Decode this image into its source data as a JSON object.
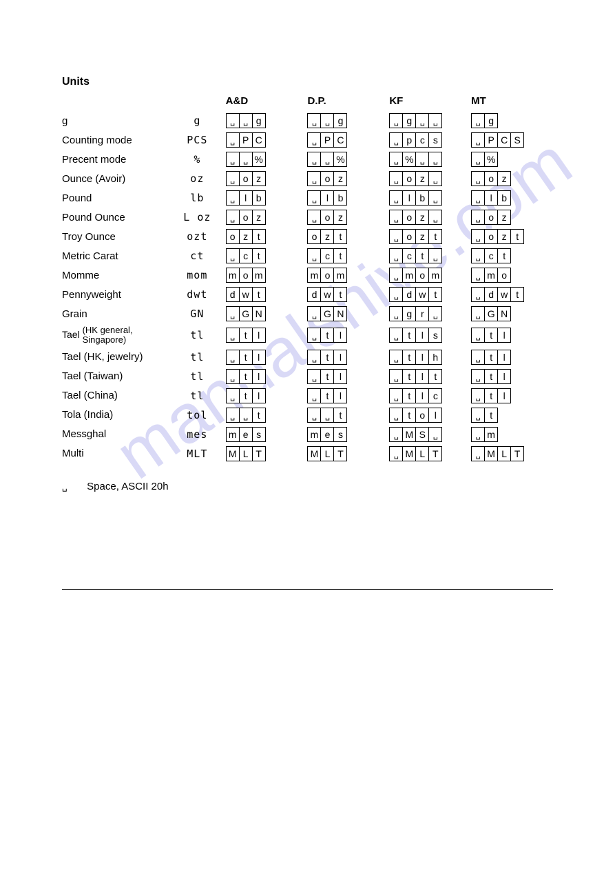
{
  "page_title": "Units",
  "watermark_text": "manualshive.com",
  "footnote_symbol": "␣",
  "footnote_text": "Space,  ASCII  20h",
  "space_char": "␣",
  "columns": [
    "A&D",
    "D.P.",
    "KF",
    "MT"
  ],
  "rows": [
    {
      "label": "g",
      "symbol": "g",
      "ad": [
        "␣",
        "␣",
        "g"
      ],
      "dp": [
        "␣",
        "␣",
        "g"
      ],
      "kf": [
        "␣",
        "g",
        "␣",
        "␣"
      ],
      "mt": [
        "␣",
        "g"
      ]
    },
    {
      "label": "Counting mode",
      "symbol": "PCS",
      "ad": [
        "␣",
        "P",
        "C"
      ],
      "dp": [
        "␣",
        "P",
        "C"
      ],
      "kf": [
        "␣",
        "p",
        "c",
        "s"
      ],
      "mt": [
        "␣",
        "P",
        "C",
        "S"
      ]
    },
    {
      "label": "Precent mode",
      "symbol": "%",
      "ad": [
        "␣",
        "␣",
        "%"
      ],
      "dp": [
        "␣",
        "␣",
        "%"
      ],
      "kf": [
        "␣",
        "%",
        "␣",
        "␣"
      ],
      "mt": [
        "␣",
        "%"
      ]
    },
    {
      "label": "Ounce (Avoir)",
      "symbol": "oz",
      "ad": [
        "␣",
        "o",
        "z"
      ],
      "dp": [
        "␣",
        "o",
        "z"
      ],
      "kf": [
        "␣",
        "o",
        "z",
        "␣"
      ],
      "mt": [
        "␣",
        "o",
        "z"
      ]
    },
    {
      "label": "Pound",
      "symbol": "lb",
      "ad": [
        "␣",
        "l",
        "b"
      ],
      "dp": [
        "␣",
        "l",
        "b"
      ],
      "kf": [
        "␣",
        "l",
        "b",
        "␣"
      ],
      "mt": [
        "␣",
        "l",
        "b"
      ]
    },
    {
      "label": "Pound Ounce",
      "symbol": "L oz",
      "ad": [
        "␣",
        "o",
        "z"
      ],
      "dp": [
        "␣",
        "o",
        "z"
      ],
      "kf": [
        "␣",
        "o",
        "z",
        "␣"
      ],
      "mt": [
        "␣",
        "o",
        "z"
      ]
    },
    {
      "label": "Troy Ounce",
      "symbol": "ozt",
      "ad": [
        "o",
        "z",
        "t"
      ],
      "dp": [
        "o",
        "z",
        "t"
      ],
      "kf": [
        "␣",
        "o",
        "z",
        "t"
      ],
      "mt": [
        "␣",
        "o",
        "z",
        "t"
      ]
    },
    {
      "label": "Metric Carat",
      "symbol": "ct",
      "ad": [
        "␣",
        "c",
        "t"
      ],
      "dp": [
        "␣",
        "c",
        "t"
      ],
      "kf": [
        "␣",
        "c",
        "t",
        "␣"
      ],
      "mt": [
        "␣",
        "c",
        "t"
      ]
    },
    {
      "label": "Momme",
      "symbol": "mom",
      "ad": [
        "m",
        "o",
        "m"
      ],
      "dp": [
        "m",
        "o",
        "m"
      ],
      "kf": [
        "␣",
        "m",
        "o",
        "m"
      ],
      "mt": [
        "␣",
        "m",
        "o"
      ]
    },
    {
      "label": "Pennyweight",
      "symbol": "dwt",
      "ad": [
        "d",
        "w",
        "t"
      ],
      "dp": [
        "d",
        "w",
        "t"
      ],
      "kf": [
        "␣",
        "d",
        "w",
        "t"
      ],
      "mt": [
        "␣",
        "d",
        "w",
        "t"
      ]
    },
    {
      "label": "Grain",
      "symbol": "GN",
      "ad": [
        "␣",
        "G",
        "N"
      ],
      "dp": [
        "␣",
        "G",
        "N"
      ],
      "kf": [
        "␣",
        "g",
        "r",
        "␣"
      ],
      "mt": [
        "␣",
        "G",
        "N"
      ]
    },
    {
      "label": "Tael (HK general,\nSingapore)",
      "symbol": "tl",
      "ad": [
        "␣",
        "t",
        "l"
      ],
      "dp": [
        "␣",
        "t",
        "l"
      ],
      "kf": [
        "␣",
        "t",
        "l",
        "s"
      ],
      "mt": [
        "␣",
        "t",
        "l"
      ],
      "multiline": true
    },
    {
      "label": "Tael (HK, jewelry)",
      "symbol": "tl",
      "ad": [
        "␣",
        "t",
        "l"
      ],
      "dp": [
        "␣",
        "t",
        "l"
      ],
      "kf": [
        "␣",
        "t",
        "l",
        "h"
      ],
      "mt": [
        "␣",
        "t",
        "l"
      ]
    },
    {
      "label": "Tael (Taiwan)",
      "symbol": "tl",
      "ad": [
        "␣",
        "t",
        "l"
      ],
      "dp": [
        "␣",
        "t",
        "l"
      ],
      "kf": [
        "␣",
        "t",
        "l",
        "t"
      ],
      "mt": [
        "␣",
        "t",
        "l"
      ]
    },
    {
      "label": "Tael (China)",
      "symbol": "tl",
      "ad": [
        "␣",
        "t",
        "l"
      ],
      "dp": [
        "␣",
        "t",
        "l"
      ],
      "kf": [
        "␣",
        "t",
        "l",
        "c"
      ],
      "mt": [
        "␣",
        "t",
        "l"
      ]
    },
    {
      "label": "Tola (India)",
      "symbol": "tol",
      "ad": [
        "␣",
        "␣",
        "t"
      ],
      "dp": [
        "␣",
        "␣",
        "t"
      ],
      "kf": [
        "␣",
        "t",
        "o",
        "l"
      ],
      "mt": [
        "␣",
        "t"
      ]
    },
    {
      "label": "Messghal",
      "symbol": "mes",
      "ad": [
        "m",
        "e",
        "s"
      ],
      "dp": [
        "m",
        "e",
        "s"
      ],
      "kf": [
        "␣",
        "M",
        "S",
        "␣"
      ],
      "mt": [
        "␣",
        "m"
      ]
    },
    {
      "label": "Multi",
      "symbol": "MLT",
      "ad": [
        "M",
        "L",
        "T"
      ],
      "dp": [
        "M",
        "L",
        "T"
      ],
      "kf": [
        "␣",
        "M",
        "L",
        "T"
      ],
      "mt": [
        "␣",
        "M",
        "L",
        "T"
      ]
    }
  ],
  "colors": {
    "background": "#ffffff",
    "text": "#000000",
    "symbol_text": "#888888",
    "border": "#000000",
    "watermark": "#6b6bdd"
  }
}
